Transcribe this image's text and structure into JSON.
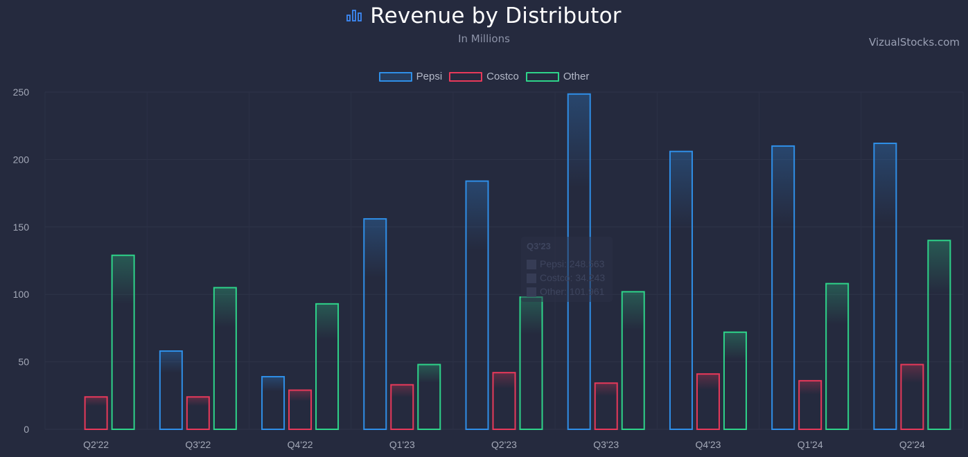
{
  "header": {
    "title": "Revenue by Distributor",
    "subtitle": "In Millions",
    "brand": "VizualStocks.com",
    "icon": "bar-chart-icon"
  },
  "colors": {
    "background": "#252a3e",
    "pepsi": "#2f8fe8",
    "costco": "#e8395a",
    "other": "#2ed48a",
    "accent": "#3d8af7"
  },
  "legend": [
    {
      "label": "Pepsi",
      "color": "#2f8fe8"
    },
    {
      "label": "Costco",
      "color": "#e8395a"
    },
    {
      "label": "Other",
      "color": "#2ed48a"
    }
  ],
  "chart_data": {
    "type": "bar",
    "title": "Revenue by Distributor",
    "subtitle": "In Millions",
    "categories": [
      "Q2'22",
      "Q3'22",
      "Q4'22",
      "Q1'23",
      "Q2'23",
      "Q3'23",
      "Q4'23",
      "Q1'24",
      "Q2'24"
    ],
    "series": [
      {
        "name": "Pepsi",
        "color": "#2f8fe8",
        "values": [
          0,
          58,
          39,
          156,
          184,
          248.563,
          206,
          210,
          212
        ]
      },
      {
        "name": "Costco",
        "color": "#e8395a",
        "values": [
          24,
          24,
          29,
          33,
          42,
          34.243,
          41,
          36,
          48
        ]
      },
      {
        "name": "Other",
        "color": "#2ed48a",
        "values": [
          129,
          105,
          93,
          48,
          98,
          101.961,
          72,
          108,
          140
        ]
      }
    ],
    "ylim": [
      0,
      250
    ],
    "yticks": [
      0,
      50,
      100,
      150,
      200,
      250
    ],
    "grid": true,
    "legend_position": "top-center",
    "tooltip": {
      "title": "Q3'23",
      "lines": [
        "Pepsi: 248.563",
        "Costco: 34.243",
        "Other: 101.961"
      ]
    }
  }
}
